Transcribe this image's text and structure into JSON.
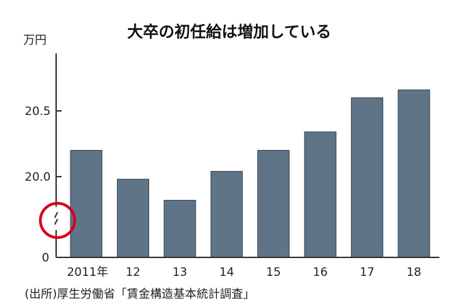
{
  "chart_data": {
    "type": "bar",
    "title": "大卒の初任給は増加している",
    "ylabel": "万円",
    "categories": [
      "2011年",
      "12",
      "13",
      "14",
      "15",
      "16",
      "17",
      "18"
    ],
    "values": [
      20.2,
      19.98,
      19.82,
      20.04,
      20.2,
      20.34,
      20.6,
      20.66
    ],
    "y_ticks": [
      {
        "value": 0,
        "label": "0"
      },
      {
        "value": 20.0,
        "label": "20.0"
      },
      {
        "value": 20.5,
        "label": "20.5"
      }
    ],
    "axis_break": true,
    "bar_color": "#5f7587",
    "axis_color": "#333333",
    "highlight_circle_color": "#d6001c",
    "grid": false,
    "source": "(出所)厚生労働省「賃金構造基本統計調査」"
  }
}
